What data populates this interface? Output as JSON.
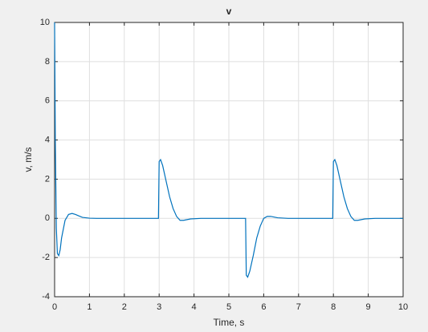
{
  "chart_data": {
    "type": "line",
    "title": "v",
    "xlabel": "Time, s",
    "ylabel": "v, m/s",
    "x": [
      0,
      0.02,
      0.05,
      0.08,
      0.12,
      0.16,
      0.2,
      0.3,
      0.4,
      0.5,
      0.6,
      0.7,
      0.8,
      1.0,
      1.2,
      2.98,
      3.0,
      3.04,
      3.1,
      3.2,
      3.3,
      3.4,
      3.5,
      3.6,
      3.7,
      3.9,
      4.2,
      5.48,
      5.5,
      5.54,
      5.6,
      5.7,
      5.8,
      5.9,
      6.0,
      6.1,
      6.2,
      6.4,
      6.7,
      7.98,
      8.0,
      8.04,
      8.1,
      8.2,
      8.3,
      8.4,
      8.5,
      8.6,
      8.7,
      8.9,
      9.2,
      10
    ],
    "values": [
      10,
      4,
      -0.5,
      -1.8,
      -1.9,
      -1.6,
      -1.0,
      -0.1,
      0.2,
      0.25,
      0.2,
      0.12,
      0.05,
      0.01,
      0,
      0,
      2.9,
      3.0,
      2.7,
      1.9,
      1.1,
      0.5,
      0.1,
      -0.1,
      -0.1,
      -0.03,
      0,
      0,
      -2.9,
      -3.0,
      -2.7,
      -1.9,
      -1.0,
      -0.4,
      0,
      0.1,
      0.1,
      0.03,
      0,
      0,
      2.9,
      3.0,
      2.7,
      1.9,
      1.1,
      0.5,
      0.1,
      -0.1,
      -0.1,
      -0.03,
      0,
      0
    ],
    "color": "#0072bd",
    "xlim": [
      0,
      10
    ],
    "xticks": [
      0,
      1,
      2,
      3,
      4,
      5,
      6,
      7,
      8,
      9,
      10
    ],
    "ylim": [
      -4,
      10
    ],
    "yticks": [
      -4,
      -2,
      0,
      2,
      4,
      6,
      8,
      10
    ],
    "grid": true
  }
}
